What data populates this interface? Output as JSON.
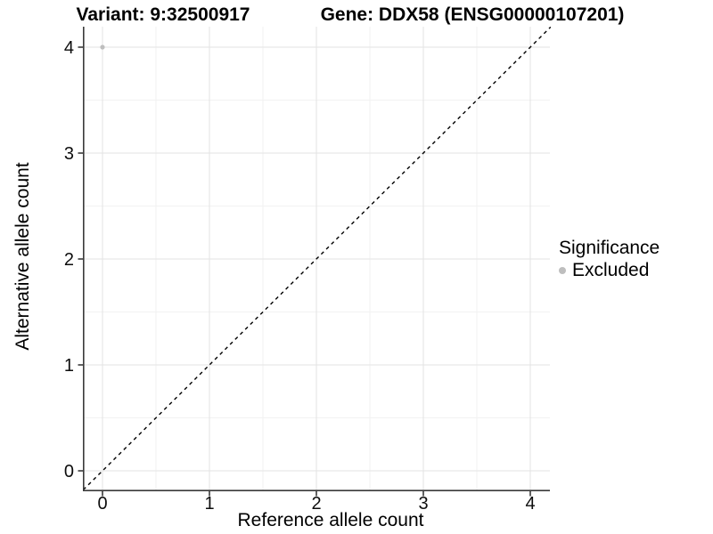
{
  "header": {
    "variant_title": "Variant: 9:32500917",
    "gene_title": "Gene: DDX58 (ENSG00000107201)"
  },
  "legend": {
    "title": "Significance",
    "items": [
      {
        "label": "Excluded",
        "color": "#bebebe",
        "marker": "circle-icon"
      }
    ]
  },
  "chart_data": {
    "type": "scatter",
    "titles": [
      "Variant: 9:32500917",
      "Gene: DDX58 (ENSG00000107201)"
    ],
    "xlabel": "Reference allele count",
    "ylabel": "Alternative allele count",
    "xlim": [
      -0.18,
      4.19
    ],
    "ylim": [
      -0.18,
      4.19
    ],
    "xticks": [
      0,
      1,
      2,
      3,
      4
    ],
    "yticks": [
      0,
      1,
      2,
      3,
      4
    ],
    "xticks_minor": [
      0.5,
      1.5,
      2.5,
      3.5
    ],
    "yticks_minor": [
      0.5,
      1.5,
      2.5,
      3.5
    ],
    "grid": "major+minor",
    "legend_position": "right",
    "series": [
      {
        "name": "Excluded",
        "color": "#bebebe",
        "points": [
          {
            "x": 0,
            "y": 4
          }
        ]
      }
    ],
    "reference_line": {
      "type": "abline",
      "slope": 1,
      "intercept": 0,
      "style": "dashed",
      "color": "#000000"
    },
    "colors": {
      "background": "#ffffff",
      "grid_major": "#e3e3e3",
      "grid_minor": "#f2f2f2",
      "axis": "#3a3a3a",
      "text": "#0d0d0d"
    }
  }
}
